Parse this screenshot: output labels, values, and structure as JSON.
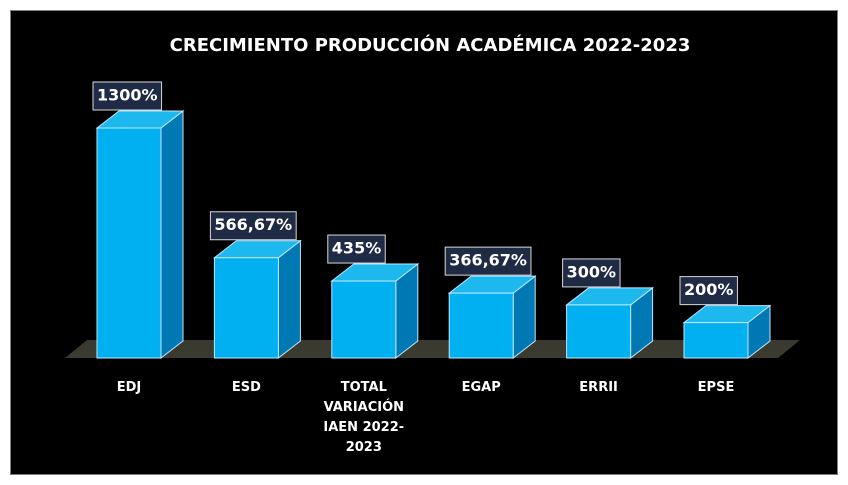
{
  "chart_data": {
    "type": "bar3d",
    "title": "CRECIMIENTO PRODUCCIÓN ACADÉMICA 2022-2023",
    "categories": [
      "EDJ",
      "ESD",
      "TOTAL VARIACIÓN IAEN 2022-2023",
      "EGAP",
      "ERRII",
      "EPSE"
    ],
    "values": [
      1300,
      566.67,
      435,
      366.67,
      300,
      200
    ],
    "value_labels": [
      "1300%",
      "566,67%",
      "435%",
      "366,67%",
      "300%",
      "200%"
    ],
    "color": "#00b0f0"
  }
}
